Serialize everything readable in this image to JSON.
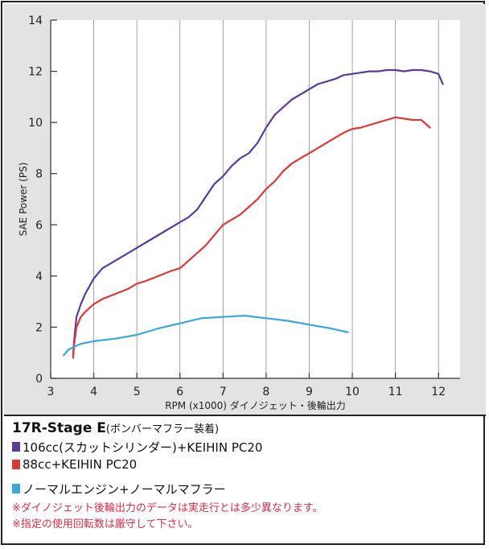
{
  "chart_data": {
    "type": "line",
    "xlabel": "RPM (x1000) ダイノジェット・後輪出力",
    "ylabel": "SAE Power (PS)",
    "xlim": [
      3,
      12.5
    ],
    "ylim": [
      0,
      14
    ],
    "xticks": [
      3,
      4,
      5,
      6,
      7,
      8,
      9,
      10,
      11,
      12
    ],
    "yticks": [
      0,
      2,
      4,
      6,
      8,
      10,
      12,
      14
    ],
    "grid": "vertical",
    "series": [
      {
        "name": "106cc(スカットシリンダー)+KEIHIN PC20",
        "color": "#5b3a9a",
        "x": [
          3.52,
          3.55,
          3.6,
          3.7,
          3.8,
          4.0,
          4.2,
          4.5,
          4.8,
          5.0,
          5.2,
          5.5,
          5.8,
          6.0,
          6.2,
          6.4,
          6.6,
          6.8,
          7.0,
          7.2,
          7.4,
          7.6,
          7.8,
          8.0,
          8.2,
          8.4,
          8.6,
          8.8,
          9.0,
          9.2,
          9.4,
          9.6,
          9.8,
          10.0,
          10.2,
          10.4,
          10.6,
          10.8,
          11.0,
          11.2,
          11.4,
          11.6,
          11.8,
          12.0,
          12.1
        ],
        "y": [
          0.9,
          1.6,
          2.4,
          2.9,
          3.3,
          3.9,
          4.3,
          4.6,
          4.9,
          5.1,
          5.3,
          5.6,
          5.9,
          6.1,
          6.3,
          6.6,
          7.1,
          7.6,
          7.9,
          8.3,
          8.6,
          8.8,
          9.2,
          9.8,
          10.3,
          10.6,
          10.9,
          11.1,
          11.3,
          11.5,
          11.6,
          11.7,
          11.85,
          11.9,
          11.95,
          12.0,
          12.0,
          12.05,
          12.05,
          12.0,
          12.05,
          12.05,
          12.0,
          11.9,
          11.5
        ]
      },
      {
        "name": "88cc+KEIHIN PC20",
        "color": "#d93a3a",
        "x": [
          3.52,
          3.55,
          3.6,
          3.7,
          3.8,
          4.0,
          4.2,
          4.5,
          4.8,
          5.0,
          5.2,
          5.5,
          5.8,
          6.0,
          6.2,
          6.4,
          6.6,
          6.8,
          7.0,
          7.2,
          7.4,
          7.6,
          7.8,
          8.0,
          8.2,
          8.4,
          8.6,
          8.8,
          9.0,
          9.2,
          9.4,
          9.6,
          9.8,
          10.0,
          10.2,
          10.4,
          10.6,
          10.8,
          11.0,
          11.2,
          11.4,
          11.6,
          11.8
        ],
        "y": [
          0.8,
          1.4,
          2.0,
          2.4,
          2.6,
          2.9,
          3.1,
          3.3,
          3.5,
          3.7,
          3.8,
          4.0,
          4.2,
          4.3,
          4.6,
          4.9,
          5.2,
          5.6,
          6.0,
          6.2,
          6.4,
          6.7,
          7.0,
          7.4,
          7.7,
          8.1,
          8.4,
          8.6,
          8.8,
          9.0,
          9.2,
          9.4,
          9.6,
          9.75,
          9.8,
          9.9,
          10.0,
          10.1,
          10.2,
          10.15,
          10.1,
          10.1,
          9.8
        ]
      },
      {
        "name": "ノーマルエンジン+ノーマルマフラー",
        "color": "#3aa8d8",
        "x": [
          3.3,
          3.4,
          3.5,
          3.7,
          4.0,
          4.5,
          5.0,
          5.5,
          6.0,
          6.5,
          7.0,
          7.5,
          8.0,
          8.5,
          9.0,
          9.5,
          9.9
        ],
        "y": [
          0.9,
          1.1,
          1.2,
          1.35,
          1.45,
          1.55,
          1.7,
          1.95,
          2.15,
          2.35,
          2.4,
          2.45,
          2.35,
          2.25,
          2.1,
          1.95,
          1.8
        ]
      }
    ]
  },
  "legend": {
    "title": "17R-Stage E",
    "title_sub": "(ボンバーマフラー装着)",
    "items": [
      {
        "label": "106cc(スカットシリンダー)+KEIHIN PC20",
        "color": "#5b3a9a"
      },
      {
        "label": "88cc+KEIHIN PC20",
        "color": "#d93a3a"
      },
      {
        "label": "ノーマルエンジン+ノーマルマフラー",
        "color": "#3aa8d8"
      }
    ],
    "notes": [
      "※ダイノジェット後輪出力のデータは実走行とは多少異なります。",
      "※指定の使用回転数は厳守して下さい。"
    ]
  }
}
